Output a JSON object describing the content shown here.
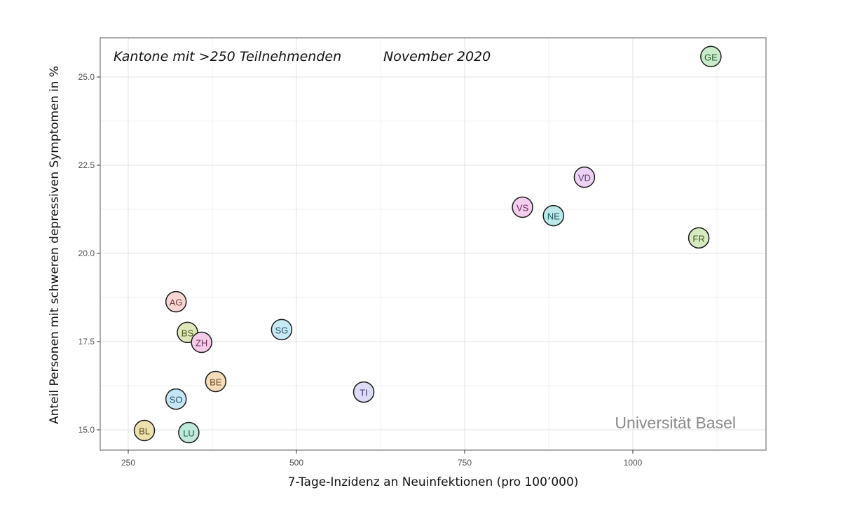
{
  "chart_data": {
    "type": "scatter",
    "annotation_left": "Kantone mit >250 Teilnehmenden",
    "annotation_right": "November 2020",
    "xlabel": "7-Tage-Inzidenz an Neuinfektionen (pro 100’000)",
    "ylabel": "Anteil Personen mit schweren depressiven Symptomen in %",
    "watermark": "Universität Basel",
    "xlim": [
      200,
      1180
    ],
    "ylim": [
      14.4,
      26.1
    ],
    "x_ticks": [
      250,
      500,
      750,
      1000
    ],
    "x_tick_labels": [
      "250",
      "500",
      "750",
      "1000"
    ],
    "y_ticks": [
      15.0,
      17.5,
      20.0,
      22.5,
      25.0
    ],
    "y_tick_labels": [
      "15.0",
      "17.5",
      "20.0",
      "22.5",
      "25.0"
    ],
    "grid": true,
    "points": [
      {
        "label": "GE",
        "x": 1116,
        "y": 25.58,
        "color": "#c8ebc9",
        "text_color": "#2e5d32"
      },
      {
        "label": "VD",
        "x": 928,
        "y": 22.16,
        "color": "#ecd2f5",
        "text_color": "#5b3a6b"
      },
      {
        "label": "VS",
        "x": 836,
        "y": 21.31,
        "color": "#f5cdee",
        "text_color": "#6a2f60"
      },
      {
        "label": "NE",
        "x": 882,
        "y": 21.07,
        "color": "#bde8ea",
        "text_color": "#1f5a5e"
      },
      {
        "label": "FR",
        "x": 1098,
        "y": 20.44,
        "color": "#d6ebbf",
        "text_color": "#3f5a22"
      },
      {
        "label": "AG",
        "x": 321,
        "y": 18.63,
        "color": "#f8d6d4",
        "text_color": "#6e3b38"
      },
      {
        "label": "SG",
        "x": 478,
        "y": 17.84,
        "color": "#c9e9f5",
        "text_color": "#245466"
      },
      {
        "label": "BS",
        "x": 338,
        "y": 17.76,
        "color": "#dfe8b8",
        "text_color": "#4f5a1e"
      },
      {
        "label": "ZH",
        "x": 359,
        "y": 17.48,
        "color": "#f5cde8",
        "text_color": "#6a2f5a"
      },
      {
        "label": "BE",
        "x": 380,
        "y": 16.37,
        "color": "#f5dcbb",
        "text_color": "#6a4a22"
      },
      {
        "label": "TI",
        "x": 600,
        "y": 16.07,
        "color": "#dcdcf7",
        "text_color": "#3a3a66"
      },
      {
        "label": "SO",
        "x": 321,
        "y": 15.87,
        "color": "#c6e6f7",
        "text_color": "#245066"
      },
      {
        "label": "BL",
        "x": 274,
        "y": 14.98,
        "color": "#eee1b0",
        "text_color": "#5a4a1a"
      },
      {
        "label": "LU",
        "x": 340,
        "y": 14.92,
        "color": "#bfeadb",
        "text_color": "#1f5a46"
      }
    ]
  }
}
